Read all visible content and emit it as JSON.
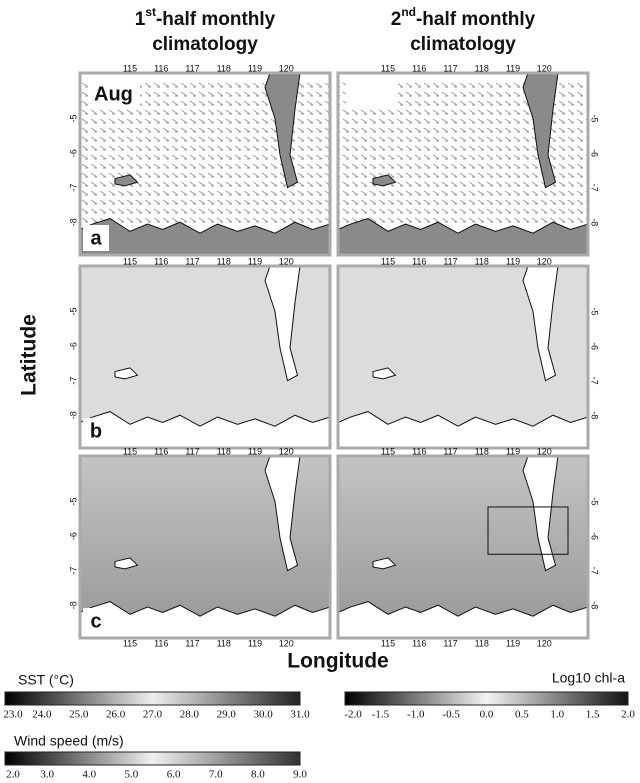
{
  "column_titles": [
    {
      "number": "1",
      "superscript": "st",
      "text": "-half monthly",
      "line2": "climatology"
    },
    {
      "number": "2",
      "superscript": "nd",
      "text": "-half monthly",
      "line2": "climatology"
    }
  ],
  "month": "Aug",
  "panels": [
    "a",
    "b",
    "c"
  ],
  "y_label": "Latitude",
  "x_label": "Longitude",
  "longitude_ticks": [
    115,
    116,
    117,
    118,
    119,
    120
  ],
  "latitude_ticks": [
    -5,
    -6,
    -7,
    -8
  ],
  "colorbars": [
    {
      "label": "SST (°C)",
      "ticks": [
        "23.0",
        "24.0",
        "25.0",
        "26.0",
        "27.0",
        "28.0",
        "29.0",
        "30.0",
        "31.0"
      ]
    },
    {
      "label": "Log10 chl-a",
      "ticks": [
        "-2.0",
        "-1.5",
        "-1.0",
        "-0.5",
        "0.0",
        "0.5",
        "1.0",
        "1.5",
        "2.0"
      ]
    },
    {
      "label": "Wind speed (m/s)",
      "ticks": [
        "2.0",
        "3.0",
        "4.0",
        "5.0",
        "6.0",
        "7.0",
        "8.0",
        "9.0"
      ]
    }
  ]
}
